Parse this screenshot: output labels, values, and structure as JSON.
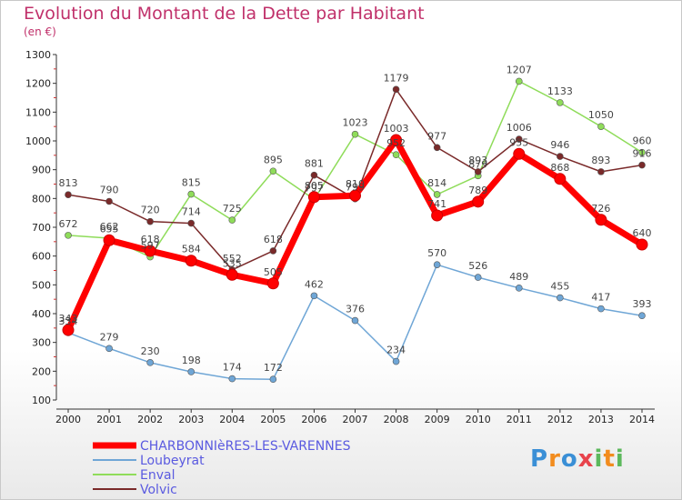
{
  "title": "Evolution du Montant de la Dette par Habitant",
  "unit_label": "(en €)",
  "logo_text": "Proxiti",
  "colors": {
    "title": "#c0306a",
    "axis": "#333333",
    "legend_text": "#5a5ae0"
  },
  "chart_data": {
    "type": "line",
    "title": "Evolution du Montant de la Dette par Habitant",
    "ylabel": "(en €)",
    "xlabel": "",
    "x": [
      "2000",
      "2001",
      "2002",
      "2003",
      "2004",
      "2005",
      "2006",
      "2007",
      "2008",
      "2009",
      "2010",
      "2011",
      "2012",
      "2013",
      "2014"
    ],
    "ylim": [
      100,
      1300
    ],
    "yticks": [
      100,
      200,
      300,
      400,
      500,
      600,
      700,
      800,
      900,
      1000,
      1100,
      1200,
      1300
    ],
    "grid": false,
    "legend_position": "bottom-left",
    "series": [
      {
        "name": "CHARBONNIèRES-LES-VARENNES",
        "color": "#ff0000",
        "values": [
          343,
          655,
          618,
          584,
          535,
          505,
          805,
          810,
          1003,
          741,
          789,
          955,
          868,
          726,
          640
        ],
        "labels": [
          "343",
          "655",
          "618",
          "584",
          "535",
          "505",
          "805",
          "810",
          "1003",
          "741",
          "789",
          "955",
          "868",
          "726",
          "640"
        ]
      },
      {
        "name": "Loubeyrat",
        "color": "#6fa6d6",
        "values": [
          334,
          279,
          230,
          198,
          174,
          172,
          462,
          376,
          234,
          570,
          526,
          489,
          455,
          417,
          393
        ],
        "labels": [
          "334",
          "279",
          "230",
          "198",
          "174",
          "172",
          "462",
          "376",
          "234",
          "570",
          "526",
          "489",
          "455",
          "417",
          "393"
        ]
      },
      {
        "name": "Enval",
        "color": "#8fdc5a",
        "values": [
          672,
          662,
          597,
          815,
          725,
          895,
          797,
          1023,
          952,
          814,
          879,
          1207,
          1133,
          1050,
          960
        ],
        "labels": [
          "672",
          "662",
          "597",
          "815",
          "725",
          "895",
          "797",
          "1023",
          "952",
          "814",
          "879",
          "1207",
          "1133",
          "1050",
          "960"
        ]
      },
      {
        "name": "Volvic",
        "color": "#7a2a2a",
        "values": [
          813,
          790,
          720,
          714,
          552,
          618,
          881,
          799,
          1179,
          977,
          893,
          1006,
          946,
          893,
          916
        ],
        "labels": [
          "813",
          "790",
          "720",
          "714",
          "552",
          "618",
          "881",
          "799",
          "1179",
          "977",
          "893",
          "1006",
          "946",
          "893",
          "916"
        ]
      }
    ]
  }
}
